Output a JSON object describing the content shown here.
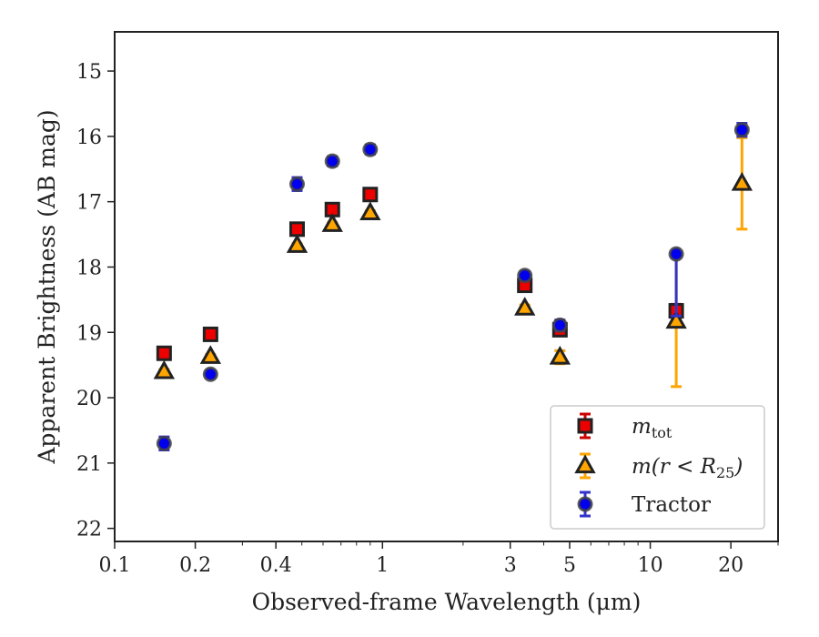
{
  "chart_data": {
    "type": "scatter",
    "xscale": "log",
    "yaxis_inverted": true,
    "xlabel": "Observed-frame Wavelength (μm)",
    "ylabel": "Apparent Brightness (AB mag)",
    "xlim": [
      0.1,
      30
    ],
    "ylim": [
      22.2,
      14.4
    ],
    "xticks": [
      {
        "value": 0.1,
        "label": "0.1"
      },
      {
        "value": 0.2,
        "label": "0.2"
      },
      {
        "value": 0.4,
        "label": "0.4"
      },
      {
        "value": 1,
        "label": "1"
      },
      {
        "value": 3,
        "label": "3"
      },
      {
        "value": 5,
        "label": "5"
      },
      {
        "value": 10,
        "label": "10"
      },
      {
        "value": 20,
        "label": "20"
      }
    ],
    "yticks": [
      {
        "value": 15,
        "label": "15"
      },
      {
        "value": 16,
        "label": "16"
      },
      {
        "value": 17,
        "label": "17"
      },
      {
        "value": 18,
        "label": "18"
      },
      {
        "value": 19,
        "label": "19"
      },
      {
        "value": 20,
        "label": "20"
      },
      {
        "value": 21,
        "label": "21"
      },
      {
        "value": 22,
        "label": "22"
      }
    ],
    "legend_position": "lower-right",
    "series": [
      {
        "name": "m_tot",
        "legend_main": "m",
        "legend_sub": "tot",
        "marker": "square",
        "color": "#ee0000",
        "errcolor": "#cc0000",
        "points": [
          {
            "x": 0.153,
            "y": 19.32,
            "err": 0.03
          },
          {
            "x": 0.228,
            "y": 19.03,
            "err": 0.03
          },
          {
            "x": 0.48,
            "y": 17.42,
            "err": 0.03
          },
          {
            "x": 0.65,
            "y": 17.12,
            "err": 0.03
          },
          {
            "x": 0.9,
            "y": 16.89,
            "err": 0.03
          },
          {
            "x": 3.4,
            "y": 18.28,
            "err": 0.06
          },
          {
            "x": 4.6,
            "y": 18.96,
            "err": 0.08
          },
          {
            "x": 12.5,
            "y": 18.67,
            "err": 0.1
          },
          {
            "x": 22.0,
            "y": null,
            "err": 0
          }
        ]
      },
      {
        "name": "m(r < R25)",
        "legend_main": "m(r < R",
        "legend_sub": "25",
        "legend_tail": ")",
        "marker": "triangle",
        "color": "#ffa500",
        "errcolor": "#ffa500",
        "points": [
          {
            "x": 0.153,
            "y": 19.6,
            "err": 0.03
          },
          {
            "x": 0.228,
            "y": 19.37,
            "err": 0.03
          },
          {
            "x": 0.48,
            "y": 17.67,
            "err": 0.03
          },
          {
            "x": 0.65,
            "y": 17.35,
            "err": 0.03
          },
          {
            "x": 0.9,
            "y": 17.17,
            "err": 0.03
          },
          {
            "x": 3.4,
            "y": 18.63,
            "err": 0.05
          },
          {
            "x": 4.6,
            "y": 19.38,
            "err": 0.1
          },
          {
            "x": 12.5,
            "y": 18.83,
            "err": 1.0
          },
          {
            "x": 22.0,
            "y": 16.72,
            "err": 0.7
          }
        ]
      },
      {
        "name": "Tractor",
        "legend_main": "Tractor",
        "marker": "circle",
        "color": "#0000ee",
        "errcolor": "#3333cc",
        "points": [
          {
            "x": 0.153,
            "y": 20.7,
            "err": 0.1
          },
          {
            "x": 0.228,
            "y": 19.64,
            "err": 0.05
          },
          {
            "x": 0.48,
            "y": 16.73,
            "err": 0.1
          },
          {
            "x": 0.65,
            "y": 16.38,
            "err": 0.07
          },
          {
            "x": 0.9,
            "y": 16.2,
            "err": 0.07
          },
          {
            "x": 3.4,
            "y": 18.13,
            "err": 0.06
          },
          {
            "x": 4.6,
            "y": 18.89,
            "err": 0.08
          },
          {
            "x": 12.5,
            "y": 17.8,
            "err": 0.0,
            "err_low": 0.95
          },
          {
            "x": 22.0,
            "y": 15.9,
            "err": 0.1
          }
        ]
      }
    ]
  }
}
